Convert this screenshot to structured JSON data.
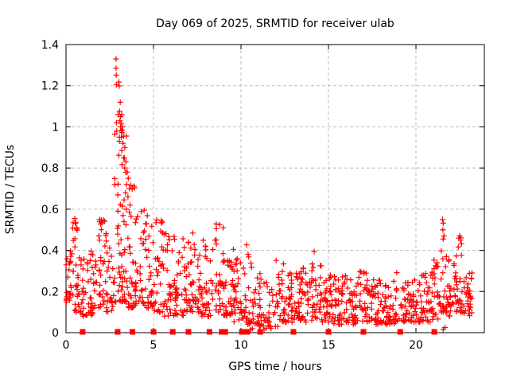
{
  "chart_data": {
    "type": "scatter",
    "title": "Day 069 of 2025, SRMTID for receiver ulab",
    "xlabel": "GPS time / hours",
    "ylabel": "SRMTID / TECUs",
    "xlim": [
      0,
      23.91
    ],
    "ylim": [
      0,
      1.4
    ],
    "xticks": [
      {
        "v": 0,
        "label": "0"
      },
      {
        "v": 5,
        "label": "5"
      },
      {
        "v": 10,
        "label": "10"
      },
      {
        "v": 15,
        "label": "15"
      },
      {
        "v": 20,
        "label": "20"
      }
    ],
    "yticks": [
      {
        "v": 0,
        "label": "0"
      },
      {
        "v": 0.2,
        "label": "0.2"
      },
      {
        "v": 0.4,
        "label": "0.4"
      },
      {
        "v": 0.6,
        "label": "0.6"
      },
      {
        "v": 0.8,
        "label": "0.8"
      },
      {
        "v": 1,
        "label": "1"
      },
      {
        "v": 1.2,
        "label": "1.2"
      },
      {
        "v": 1.4,
        "label": "1.4"
      }
    ],
    "grid": {
      "shown": true,
      "style": "dashed",
      "color": "#bdbdbd"
    },
    "legend": "none",
    "frame_color": "#000000",
    "series": [
      {
        "name": "SRMTID",
        "marker": "plus",
        "color": "#ff0000",
        "seed": 69,
        "summary": "Dense TID scatter: baseline 0.05-0.45 TECUs all day, strong peak 0.6-1.33 near hours 2.8-3.9, quiet dip near hours 11-12, secondary spikes to ~0.55 near hour 21.5 and ~0.47 near hour 22.5, data ends ~hour 23.2",
        "clusters": [
          [
            0.0,
            0.3,
            22,
            0.14,
            0.42,
            1.6
          ],
          [
            0.3,
            0.8,
            30,
            0.1,
            0.56,
            1.8
          ],
          [
            0.8,
            1.3,
            26,
            0.08,
            0.36,
            1.5
          ],
          [
            1.3,
            1.8,
            28,
            0.08,
            0.4,
            1.6
          ],
          [
            1.8,
            2.3,
            30,
            0.1,
            0.56,
            1.8
          ],
          [
            2.3,
            2.75,
            24,
            0.1,
            0.46,
            1.6
          ],
          [
            2.75,
            3.15,
            30,
            0.15,
            1.3,
            2.6
          ],
          [
            3.15,
            3.55,
            34,
            0.15,
            1.1,
            2.4
          ],
          [
            3.55,
            3.95,
            28,
            0.12,
            0.82,
            2.2
          ],
          [
            3.95,
            4.45,
            30,
            0.14,
            0.62,
            1.8
          ],
          [
            4.45,
            5.0,
            32,
            0.12,
            0.6,
            1.9
          ],
          [
            5.0,
            5.6,
            34,
            0.1,
            0.55,
            1.8
          ],
          [
            5.6,
            6.3,
            38,
            0.08,
            0.5,
            1.7
          ],
          [
            6.3,
            7.0,
            38,
            0.08,
            0.46,
            1.7
          ],
          [
            7.0,
            7.6,
            34,
            0.1,
            0.5,
            1.7
          ],
          [
            7.6,
            8.3,
            38,
            0.08,
            0.46,
            1.7
          ],
          [
            8.3,
            9.0,
            34,
            0.1,
            0.56,
            1.8
          ],
          [
            9.0,
            9.6,
            36,
            0.08,
            0.42,
            1.6
          ],
          [
            9.6,
            10.2,
            34,
            0.05,
            0.38,
            1.6
          ],
          [
            10.2,
            10.8,
            30,
            0.04,
            0.46,
            1.8
          ],
          [
            10.8,
            11.3,
            24,
            0.03,
            0.3,
            1.6
          ],
          [
            11.3,
            12.0,
            24,
            0.02,
            0.25,
            1.6
          ],
          [
            12.0,
            12.6,
            32,
            0.05,
            0.36,
            1.6
          ],
          [
            12.6,
            13.3,
            38,
            0.05,
            0.3,
            1.5
          ],
          [
            13.3,
            14.0,
            38,
            0.05,
            0.33,
            1.5
          ],
          [
            14.0,
            14.6,
            34,
            0.05,
            0.43,
            1.7
          ],
          [
            14.6,
            15.3,
            38,
            0.05,
            0.3,
            1.5
          ],
          [
            15.3,
            16.0,
            38,
            0.04,
            0.28,
            1.5
          ],
          [
            16.0,
            16.7,
            38,
            0.04,
            0.26,
            1.5
          ],
          [
            16.7,
            17.4,
            34,
            0.05,
            0.31,
            1.5
          ],
          [
            17.4,
            18.1,
            38,
            0.04,
            0.26,
            1.5
          ],
          [
            18.1,
            18.8,
            38,
            0.04,
            0.25,
            1.5
          ],
          [
            18.8,
            19.5,
            34,
            0.05,
            0.3,
            1.5
          ],
          [
            19.5,
            20.2,
            38,
            0.05,
            0.26,
            1.5
          ],
          [
            20.2,
            20.9,
            38,
            0.05,
            0.3,
            1.5
          ],
          [
            20.9,
            21.4,
            28,
            0.06,
            0.36,
            1.6
          ],
          [
            21.4,
            21.8,
            24,
            0.1,
            0.55,
            2.0
          ],
          [
            21.8,
            22.3,
            28,
            0.08,
            0.36,
            1.5
          ],
          [
            22.3,
            22.7,
            24,
            0.1,
            0.47,
            1.8
          ],
          [
            22.7,
            23.2,
            30,
            0.08,
            0.3,
            1.4
          ]
        ],
        "notable_points": [
          [
            2.86,
            1.33
          ],
          [
            2.86,
            1.285
          ],
          [
            2.88,
            1.205
          ],
          [
            3.1,
            1.12
          ],
          [
            3.06,
            1.075
          ],
          [
            3.12,
            1.05
          ],
          [
            3.18,
            1.06
          ],
          [
            3.08,
            1.03
          ],
          [
            2.88,
            1.02
          ],
          [
            2.9,
            0.98
          ],
          [
            3.12,
            1.0
          ],
          [
            3.2,
            0.985
          ],
          [
            3.24,
            1.0
          ],
          [
            3.3,
            0.955
          ],
          [
            3.16,
            0.95
          ],
          [
            3.05,
            0.93
          ],
          [
            3.26,
            0.92
          ],
          [
            3.36,
            0.9
          ],
          [
            3.18,
            0.885
          ],
          [
            3.02,
            0.862
          ],
          [
            3.3,
            0.85
          ],
          [
            2.79,
            0.965
          ],
          [
            3.42,
            0.83
          ],
          [
            3.36,
            0.8
          ],
          [
            3.5,
            0.78
          ],
          [
            3.56,
            0.75
          ],
          [
            3.46,
            0.72
          ],
          [
            3.62,
            0.7
          ],
          [
            3.4,
            0.68
          ],
          [
            3.54,
            0.66
          ],
          [
            3.32,
            0.645
          ],
          [
            3.66,
            0.62
          ],
          [
            3.44,
            0.6
          ],
          [
            2.97,
            0.59
          ],
          [
            3.62,
            0.585
          ],
          [
            3.72,
            0.565
          ],
          [
            0.5,
            0.555
          ],
          [
            0.56,
            0.535
          ],
          [
            0.62,
            0.51
          ],
          [
            1.92,
            0.55
          ],
          [
            1.98,
            0.528
          ],
          [
            2.02,
            0.5
          ],
          [
            21.52,
            0.55
          ],
          [
            21.56,
            0.532
          ],
          [
            21.54,
            0.5
          ],
          [
            21.6,
            0.47
          ],
          [
            22.5,
            0.47
          ],
          [
            22.55,
            0.45
          ],
          [
            22.6,
            0.432
          ],
          [
            10.55,
            0.015
          ],
          [
            10.65,
            0.02
          ],
          [
            11.32,
            0.015
          ],
          [
            11.44,
            0.022
          ],
          [
            11.7,
            0.03
          ],
          [
            12.1,
            0.03
          ],
          [
            21.56,
            0.015
          ],
          [
            21.66,
            0.025
          ]
        ]
      },
      {
        "name": "flags",
        "marker": "filled-square",
        "color": "#ff0000",
        "y": 0,
        "x": [
          0.95,
          2.95,
          3.8,
          5.0,
          6.1,
          7.0,
          8.2,
          8.9,
          9.1,
          10.05,
          10.35,
          11.1,
          13.0,
          15.0,
          17.0,
          19.1,
          21.05
        ]
      }
    ]
  }
}
